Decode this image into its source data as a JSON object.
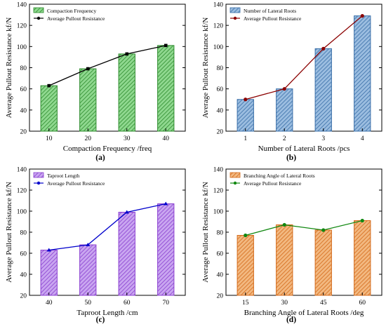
{
  "legend_colors": {
    "a": {
      "bar": "#2e8b2e",
      "bar_fill": "#8fd88f",
      "line": "#000000"
    },
    "b": {
      "bar": "#3a6fa8",
      "bar_fill": "#9bbde0",
      "line": "#8b0000"
    },
    "c": {
      "bar": "#8a3fd0",
      "bar_fill": "#c9a6f0",
      "line": "#0000cc"
    },
    "d": {
      "bar": "#d46a1a",
      "bar_fill": "#f2b880",
      "line": "#118811"
    }
  },
  "chart_data": [
    {
      "panel": "(a)",
      "type": "bar",
      "categories": [
        "10",
        "20",
        "30",
        "40"
      ],
      "series": [
        {
          "name": "Compaction Frequency",
          "kind": "bar",
          "values": [
            63,
            79,
            93,
            101
          ]
        },
        {
          "name": "Average Pullout Resistance",
          "kind": "line",
          "values": [
            63,
            79,
            93,
            101
          ]
        }
      ],
      "xlabel": "Compaction Frequency /freq",
      "ylabel": "Average Pullout Resistance kf/N",
      "ylim": [
        20,
        140
      ],
      "yticks": [
        "20",
        "40",
        "60",
        "80",
        "100",
        "120",
        "140"
      ],
      "legend": "top-left"
    },
    {
      "panel": "(b)",
      "type": "bar",
      "categories": [
        "1",
        "2",
        "3",
        "4"
      ],
      "series": [
        {
          "name": "Number of Lateral Roots",
          "kind": "bar",
          "values": [
            50,
            60,
            98,
            129
          ]
        },
        {
          "name": "Average Pullout Resistance",
          "kind": "line",
          "values": [
            50,
            60,
            98,
            129
          ]
        }
      ],
      "xlabel": "Number of Lateral Roots /pcs",
      "ylabel": "Average Pullout Resistance kf/N",
      "ylim": [
        20,
        140
      ],
      "yticks": [
        "20",
        "40",
        "60",
        "80",
        "100",
        "120",
        "140"
      ],
      "legend": "top-left"
    },
    {
      "panel": "(c)",
      "type": "bar",
      "categories": [
        "40",
        "50",
        "60",
        "70"
      ],
      "series": [
        {
          "name": "Taproot Length",
          "kind": "bar",
          "values": [
            63,
            68,
            99,
            107
          ]
        },
        {
          "name": "Average Pullout Resistance",
          "kind": "line",
          "values": [
            63,
            68,
            99,
            107
          ]
        }
      ],
      "xlabel": "Taproot Length /cm",
      "ylabel": "Average Pullout Resistance kf/N",
      "ylim": [
        20,
        140
      ],
      "yticks": [
        "20",
        "40",
        "60",
        "80",
        "100",
        "120",
        "140"
      ],
      "legend": "top-left"
    },
    {
      "panel": "(d)",
      "type": "bar",
      "categories": [
        "15",
        "30",
        "45",
        "60"
      ],
      "series": [
        {
          "name": "Branching Angle of Lateral Roots",
          "kind": "bar",
          "values": [
            77,
            87,
            82,
            91
          ]
        },
        {
          "name": "Average Pullout Resistance",
          "kind": "line",
          "values": [
            77,
            87,
            82,
            91
          ]
        }
      ],
      "xlabel": "Branching Angle of Lateral Roots /deg",
      "ylabel": "Average Pullout Resistance kf/N",
      "ylim": [
        20,
        140
      ],
      "yticks": [
        "20",
        "40",
        "60",
        "80",
        "100",
        "120",
        "140"
      ],
      "legend": "top-left"
    }
  ]
}
